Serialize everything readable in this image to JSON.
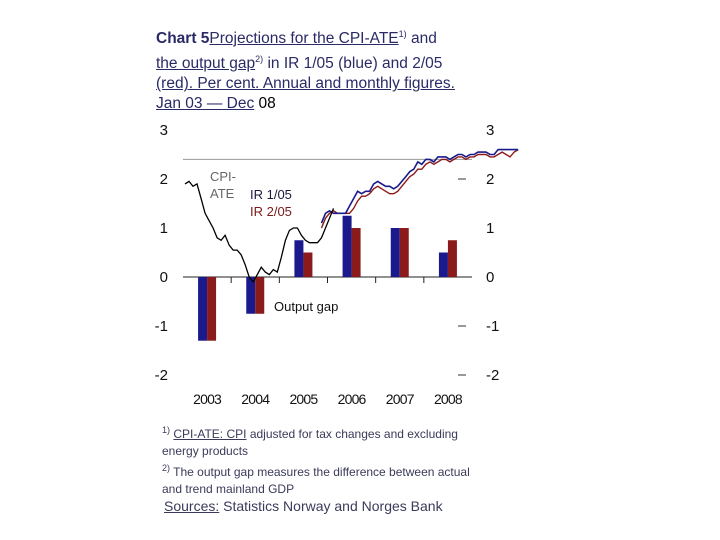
{
  "title": {
    "chart_no": "Chart 5",
    "line1": "Projections for the CPI-ATE",
    "sup1": "1)",
    "line1_tail": " and",
    "line2": "the output gap",
    "sup2": "2)",
    "line2_tail": " in IR 1/05 (blue) and 2/05",
    "line3": "(red). Per cent. Annual and monthly figures.",
    "line4": "Jan 03 — Dec",
    "line4_end": " 08"
  },
  "notes": {
    "n1_sup": "1)",
    "n1_label": "CPI-ATE: CPI",
    "n1_text": " adjusted for tax changes and excluding energy products",
    "n2_sup": "2)",
    "n2_text": " The output gap measures the difference between actual and trend mainland GDP"
  },
  "sources": {
    "label": "Sources:",
    "text": " Statistics Norway and Norges Bank"
  },
  "colors": {
    "ir105": "#1a1a8c",
    "ir205": "#8b1a1a",
    "cpi_actual": "#000000",
    "grid": "#999999"
  },
  "chart_data": {
    "type": "bar",
    "ylim": [
      -2,
      3
    ],
    "yticks": [
      "3",
      "2",
      "1",
      "0",
      "-1",
      "-2"
    ],
    "categories": [
      "2003",
      "2004",
      "2005",
      "2006",
      "2007",
      "2008"
    ],
    "annotations": {
      "cpi_label": "CPI-ATE",
      "ir1": "IR 1/05",
      "ir2": "IR 2/05",
      "output_gap": "Output gap"
    },
    "series": [
      {
        "name": "IR 1/05",
        "values": [
          -1.3,
          -0.75,
          0.75,
          1.25,
          1.0,
          0.5
        ]
      },
      {
        "name": "IR 2/05",
        "values": [
          -1.3,
          -0.75,
          0.5,
          1.0,
          1.0,
          0.75
        ]
      }
    ],
    "lines": {
      "cpi_start": "2003-01",
      "actual": [
        1.9,
        1.95,
        1.85,
        1.9,
        1.6,
        1.3,
        1.15,
        1.0,
        0.8,
        0.75,
        0.85,
        0.65,
        0.55,
        0.55,
        0.45,
        0.25,
        0.0,
        -0.1,
        0.05,
        0.2,
        0.1,
        0.05,
        0.15,
        0.1,
        0.4,
        0.75,
        0.95,
        1.0,
        1.0,
        0.85,
        0.75,
        0.7,
        0.7,
        0.7,
        0.8,
        1.0,
        1.2,
        1.4
      ],
      "ir105": [
        1.1,
        1.3,
        1.35,
        1.3,
        1.3,
        1.3,
        1.3,
        1.45,
        1.6,
        1.75,
        1.7,
        1.75,
        1.75,
        1.9,
        1.95,
        1.9,
        1.85,
        1.85,
        1.8,
        1.85,
        1.95,
        2.05,
        2.15,
        2.2,
        2.35,
        2.3,
        2.4,
        2.4,
        2.35,
        2.45,
        2.45,
        2.45,
        2.4,
        2.45,
        2.5,
        2.5,
        2.45,
        2.5,
        2.5,
        2.55,
        2.55,
        2.55,
        2.5,
        2.5,
        2.6,
        2.6,
        2.6,
        2.6,
        2.6,
        2.6
      ],
      "ir205": [
        1.0,
        1.2,
        1.3,
        1.35,
        1.3,
        1.3,
        1.3,
        1.3,
        1.4,
        1.55,
        1.65,
        1.65,
        1.7,
        1.8,
        1.85,
        1.8,
        1.75,
        1.7,
        1.7,
        1.75,
        1.85,
        1.95,
        2.05,
        2.1,
        2.2,
        2.2,
        2.3,
        2.35,
        2.3,
        2.35,
        2.4,
        2.4,
        2.35,
        2.4,
        2.45,
        2.45,
        2.4,
        2.45,
        2.45,
        2.5,
        2.5,
        2.5,
        2.45,
        2.45,
        2.5,
        2.55,
        2.5,
        2.45,
        2.55,
        2.6
      ],
      "ir_start": "2005-11",
      "reference": 2.4
    }
  }
}
